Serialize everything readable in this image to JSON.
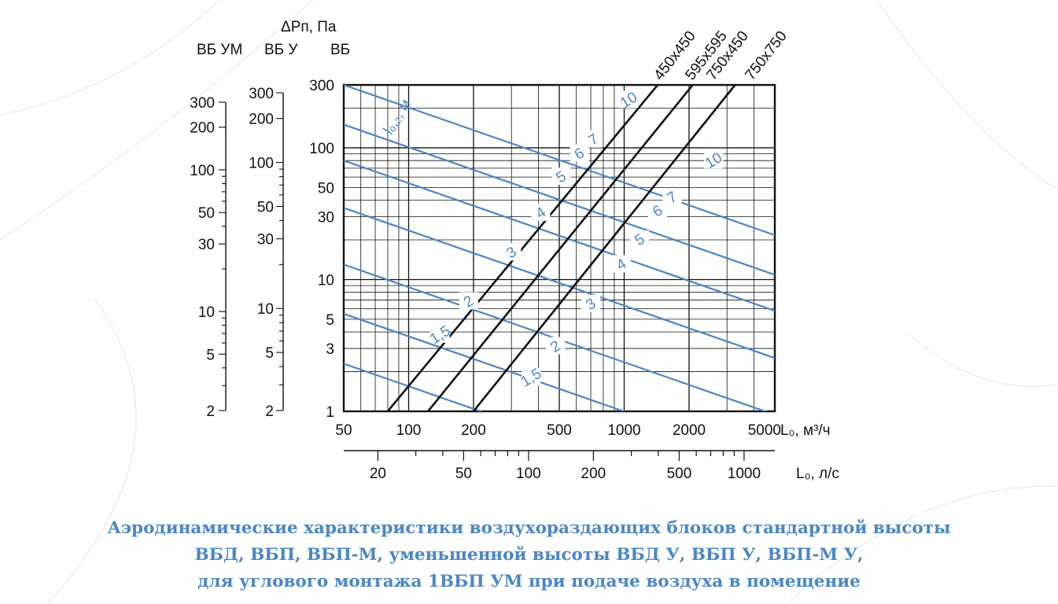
{
  "chart_data": {
    "type": "line",
    "x_axis": {
      "label": "L₀, м³/ч",
      "scale": "log",
      "range": [
        50,
        5000
      ],
      "ticks": [
        "50",
        "100",
        "200",
        "500",
        "1000",
        "2000",
        "5000"
      ]
    },
    "x2_axis": {
      "label": "L₀, л/с",
      "scale": "log",
      "ticks": [
        "20",
        "50",
        "100",
        "200",
        "500",
        "1000"
      ],
      "tick_values": [
        20,
        50,
        100,
        200,
        500,
        1000
      ]
    },
    "y_axis": {
      "header": "ΔPп, Па",
      "label": "ВБ",
      "scale": "log",
      "range": [
        1,
        300
      ],
      "ticks": [
        "1",
        "3",
        "5",
        "10",
        "30",
        "50",
        "100",
        "300"
      ],
      "tick_values": [
        1,
        3,
        5,
        10,
        30,
        50,
        100,
        300
      ]
    },
    "y_axis_vbu": {
      "label": "ВБ У",
      "ticks": [
        "2",
        "5",
        "10",
        "30",
        "50",
        "100",
        "200",
        "300"
      ],
      "tick_values": [
        2,
        5,
        10,
        30,
        50,
        100,
        200,
        300
      ]
    },
    "y_axis_vbum": {
      "label": "ВБ УМ",
      "ticks": [
        "2",
        "5",
        "10",
        "30",
        "50",
        "100",
        "200",
        "300"
      ],
      "tick_values": [
        2,
        5,
        10,
        30,
        50,
        100,
        200,
        300
      ]
    },
    "series": [
      {
        "name": "450x450",
        "x": [
          80,
          1430
        ],
        "y": [
          1,
          300
        ]
      },
      {
        "name": "595x595, 750x450",
        "x": [
          123,
          2080
        ],
        "y": [
          1,
          300
        ]
      },
      {
        "name": "750x750",
        "x": [
          200,
          3270
        ],
        "y": [
          1,
          300
        ]
      }
    ],
    "throw_label": "l₀,₂, м",
    "throw_labels": [
      {
        "label": "10",
        "x": 1050,
        "y": 230
      },
      {
        "label": "7",
        "x": 720,
        "y": 115
      },
      {
        "label": "6",
        "x": 620,
        "y": 90
      },
      {
        "label": "5",
        "x": 510,
        "y": 60
      },
      {
        "label": "4",
        "x": 410,
        "y": 32
      },
      {
        "label": "3",
        "x": 300,
        "y": 16
      },
      {
        "label": "2",
        "x": 190,
        "y": 6.8
      },
      {
        "label": "1,5",
        "x": 140,
        "y": 3.8
      },
      {
        "label": "10",
        "x": 2600,
        "y": 80
      },
      {
        "label": "7",
        "x": 1670,
        "y": 42
      },
      {
        "label": "6",
        "x": 1430,
        "y": 33
      },
      {
        "label": "5",
        "x": 1180,
        "y": 20
      },
      {
        "label": "4",
        "x": 970,
        "y": 13
      },
      {
        "label": "3",
        "x": 700,
        "y": 6.5
      },
      {
        "label": "2",
        "x": 480,
        "y": 3.1
      },
      {
        "label": "1,5",
        "x": 370,
        "y": 1.8
      }
    ],
    "grid": true
  },
  "caption": {
    "line1": "Аэродинамические характеристики воздухораздающих блоков стандартной высоты",
    "line2": "ВБД, ВБП, ВБП-М, уменьшенной высоты ВБД У, ВБП У, ВБП-М У,",
    "line3": "для углового монтажа 1ВБП УМ при подаче воздуха в помещение"
  },
  "colors": {
    "blue": "#4a86c4",
    "black": "#111111",
    "caption": "#4a86c4"
  }
}
